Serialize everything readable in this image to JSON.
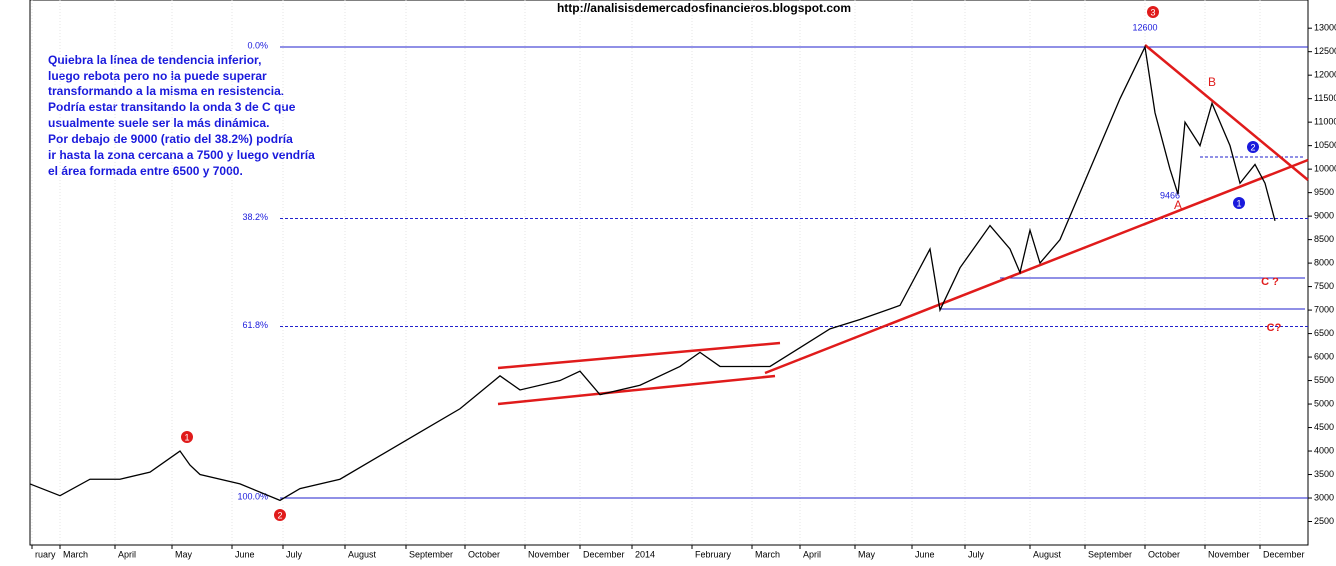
{
  "chart_data": {
    "type": "line",
    "title": "http://analisisdemercadosfinancieros.blogspot.com",
    "note": [
      "Quiebra la línea de tendencia inferior,",
      "luego rebota pero no la puede superar",
      "transformando a la misma en resistencia.",
      "Podría estar transitando la onda 3 de C que",
      "usualmente suele ser la más dinámica.",
      "Por debajo de 9000 (ratio del 38.2%) podría",
      "ir hasta la zona cercana a 7500 y luego vendría",
      "el área formada entre 6500 y 7000."
    ],
    "x": [
      0,
      30,
      60,
      90,
      120,
      150,
      160,
      170,
      210,
      250,
      270,
      310,
      350,
      390,
      430,
      470,
      490,
      530,
      550,
      570,
      610,
      650,
      670,
      690,
      740,
      770,
      800,
      830,
      870,
      900,
      910,
      930,
      960,
      980,
      990,
      1000,
      1010,
      1030,
      1050,
      1070,
      1090,
      1115,
      1125,
      1140,
      1148,
      1155,
      1170,
      1182,
      1200,
      1210,
      1225,
      1235,
      1245
    ],
    "series": [
      {
        "name": "Price",
        "color": "#000000",
        "values": [
          3300,
          3050,
          3400,
          3400,
          3550,
          4000,
          3700,
          3500,
          3300,
          2950,
          3200,
          3400,
          3900,
          4400,
          4900,
          5600,
          5300,
          5500,
          5700,
          5200,
          5400,
          5800,
          6100,
          5800,
          5800,
          6200,
          6600,
          6800,
          7100,
          8300,
          7000,
          7900,
          8800,
          8300,
          7800,
          8700,
          8000,
          8500,
          9500,
          10500,
          11500,
          12600,
          11200,
          10000,
          9466,
          11000,
          10500,
          11400,
          10500,
          9700,
          10100,
          9700,
          8900
        ]
      }
    ],
    "xlim": [
      0,
      1278
    ],
    "xticks": [
      {
        "value": 2,
        "label": "ruary"
      },
      {
        "value": 30,
        "label": "March"
      },
      {
        "value": 85,
        "label": "April"
      },
      {
        "value": 142,
        "label": "May"
      },
      {
        "value": 202,
        "label": "June"
      },
      {
        "value": 253,
        "label": "July"
      },
      {
        "value": 315,
        "label": "August"
      },
      {
        "value": 376,
        "label": "September"
      },
      {
        "value": 435,
        "label": "October"
      },
      {
        "value": 495,
        "label": "November"
      },
      {
        "value": 550,
        "label": "December"
      },
      {
        "value": 602,
        "label": "2014"
      },
      {
        "value": 662,
        "label": "February"
      },
      {
        "value": 722,
        "label": "March"
      },
      {
        "value": 770,
        "label": "April"
      },
      {
        "value": 825,
        "label": "May"
      },
      {
        "value": 882,
        "label": "June"
      },
      {
        "value": 935,
        "label": "July"
      },
      {
        "value": 1000,
        "label": "August"
      },
      {
        "value": 1055,
        "label": "September"
      },
      {
        "value": 1115,
        "label": "October"
      },
      {
        "value": 1175,
        "label": "November"
      },
      {
        "value": 1230,
        "label": "December"
      }
    ],
    "ylim": [
      2000,
      13600
    ],
    "yticks": [
      2500,
      3000,
      3500,
      4000,
      4500,
      5000,
      5500,
      6000,
      6500,
      7000,
      7500,
      8000,
      8500,
      9000,
      9500,
      10000,
      10500,
      11000,
      11500,
      12000,
      12500,
      13000
    ],
    "fib_levels": [
      {
        "label": "0.0%",
        "value": 12600,
        "dashed": false
      },
      {
        "label": "38.2%",
        "value": 8950,
        "dashed": true
      },
      {
        "label": "61.8%",
        "value": 6650,
        "dashed": true
      },
      {
        "label": "100.0%",
        "value": 3000,
        "dashed": false
      }
    ],
    "annotations": [
      "12600",
      "9466",
      "A",
      "B",
      "C ?",
      "C?"
    ],
    "waves": [
      "1",
      "2",
      "3",
      "1",
      "2"
    ]
  }
}
